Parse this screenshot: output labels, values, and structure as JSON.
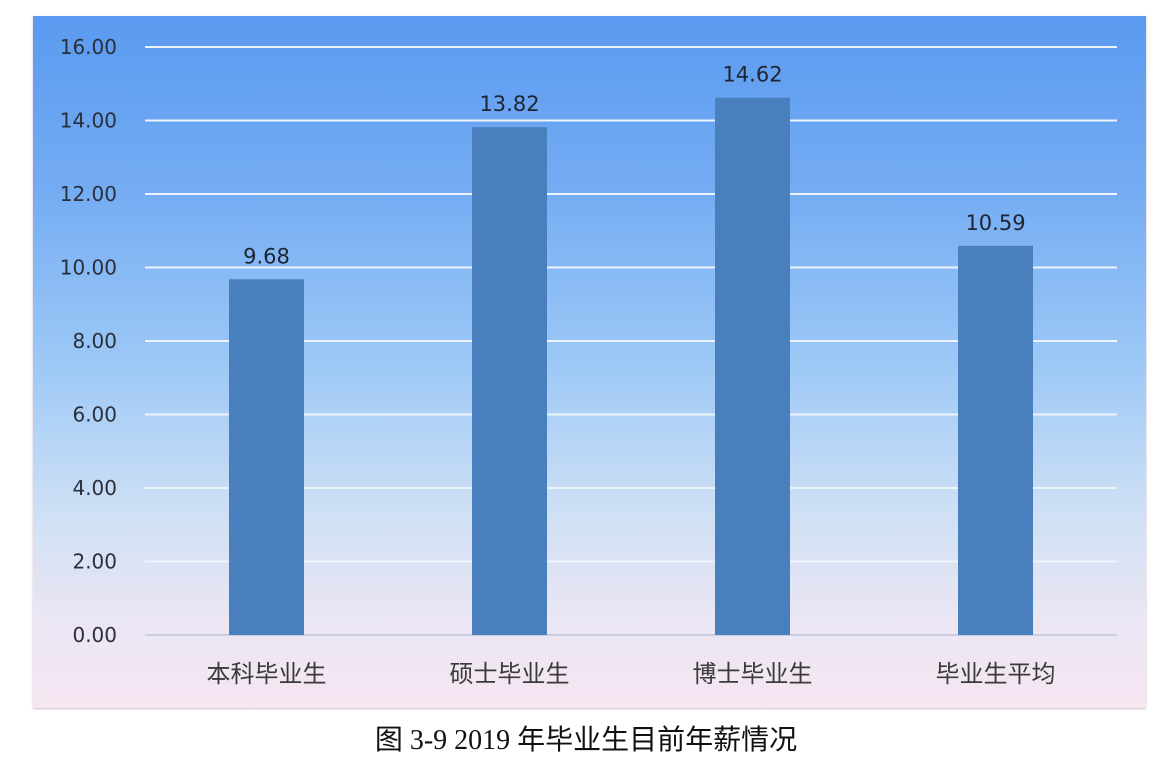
{
  "chart_data": {
    "type": "bar",
    "title": "图 3-9 2019 年毕业生目前年薪情况",
    "categories": [
      "本科毕业生",
      "硕士毕业生",
      "博士毕业生",
      "毕业生平均"
    ],
    "values": [
      9.68,
      13.82,
      14.62,
      10.59
    ],
    "data_labels": [
      "9.68",
      "13.82",
      "14.62",
      "10.59"
    ],
    "yticks": [
      "0.00",
      "2.00",
      "4.00",
      "6.00",
      "8.00",
      "10.00",
      "12.00",
      "14.00",
      "16.00"
    ],
    "xlabel": "",
    "ylabel": "",
    "ylim": [
      0,
      16
    ],
    "grid": true,
    "legend": "none",
    "colors": {
      "bar": "#4a7fbd",
      "grid": "#eef4fb",
      "background_top": "#5a9af0",
      "background_bottom": "#f5e6f1"
    }
  }
}
